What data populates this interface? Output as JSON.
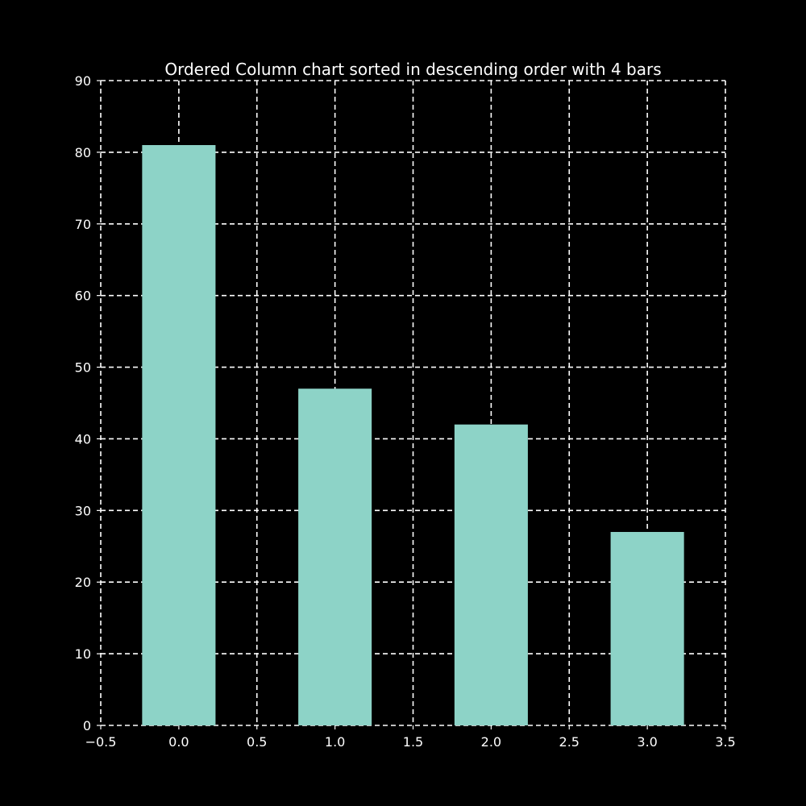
{
  "chart_data": {
    "type": "bar",
    "title": "Ordered Column chart sorted in descending order with 4 bars",
    "xlabel": "",
    "ylabel": "",
    "x": [
      0,
      1,
      2,
      3
    ],
    "values": [
      81,
      47,
      42,
      27
    ],
    "bar_width": 0.47,
    "xlim": [
      -0.5,
      3.5
    ],
    "ylim": [
      0,
      90
    ],
    "x_ticks": [
      -0.5,
      0.0,
      0.5,
      1.0,
      1.5,
      2.0,
      2.5,
      3.0,
      3.5
    ],
    "x_tick_labels": [
      "−0.5",
      "0.0",
      "0.5",
      "1.0",
      "1.5",
      "2.0",
      "2.5",
      "3.0",
      "3.5"
    ],
    "y_ticks": [
      0,
      10,
      20,
      30,
      40,
      50,
      60,
      70,
      80,
      90
    ],
    "y_tick_labels": [
      "0",
      "10",
      "20",
      "30",
      "40",
      "50",
      "60",
      "70",
      "80",
      "90"
    ],
    "grid": true,
    "grid_style": "dashed",
    "legend": "none",
    "colors": {
      "background": "#000000",
      "bar": "#8dd3c7",
      "text": "#ffffff",
      "grid": "#ffffff",
      "axis": "#ffffff"
    }
  }
}
